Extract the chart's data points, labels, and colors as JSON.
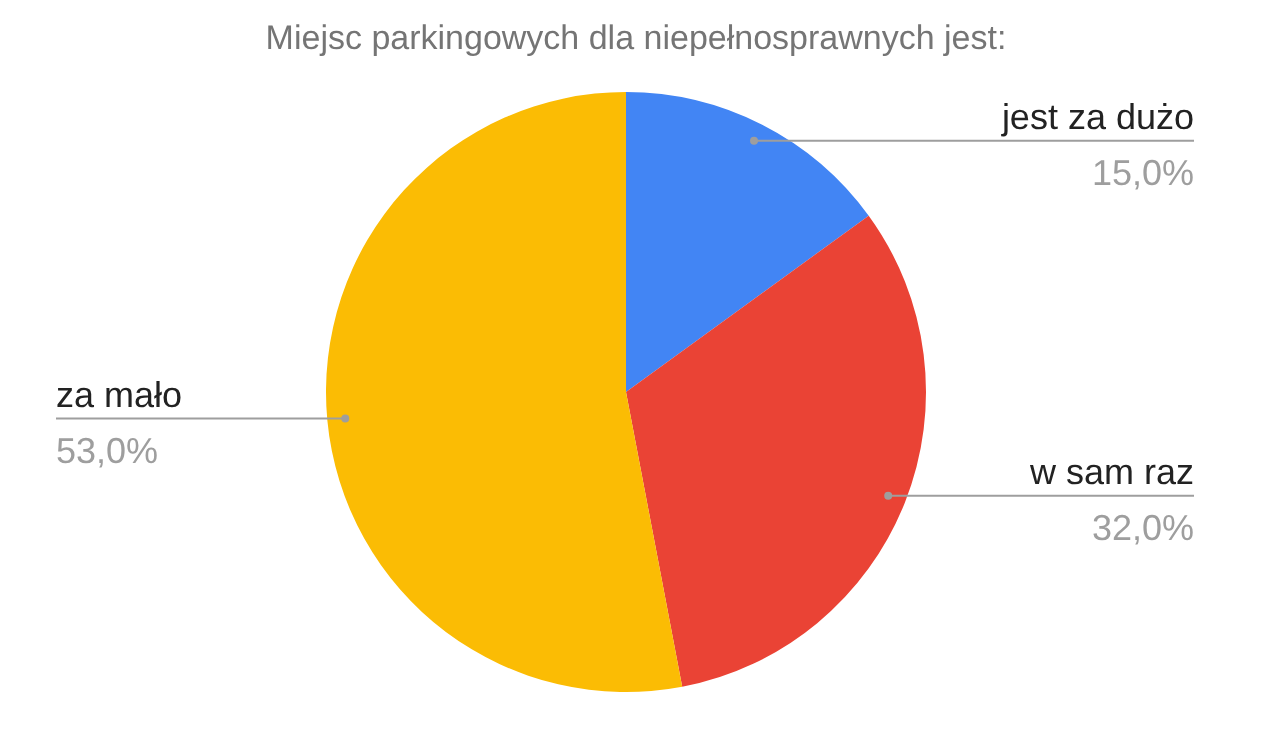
{
  "chart_data": {
    "type": "pie",
    "title": "Miejsc parkingowych dla niepełnosprawnych jest:",
    "categories": [
      "jest za dużo",
      "w sam raz",
      "za mało"
    ],
    "values": [
      15,
      32,
      53
    ],
    "colors": [
      "#4285f4",
      "#ea4335",
      "#fbbc04"
    ],
    "value_labels": [
      "15,0%",
      "32,0%",
      "53,0%"
    ],
    "legend": false
  }
}
